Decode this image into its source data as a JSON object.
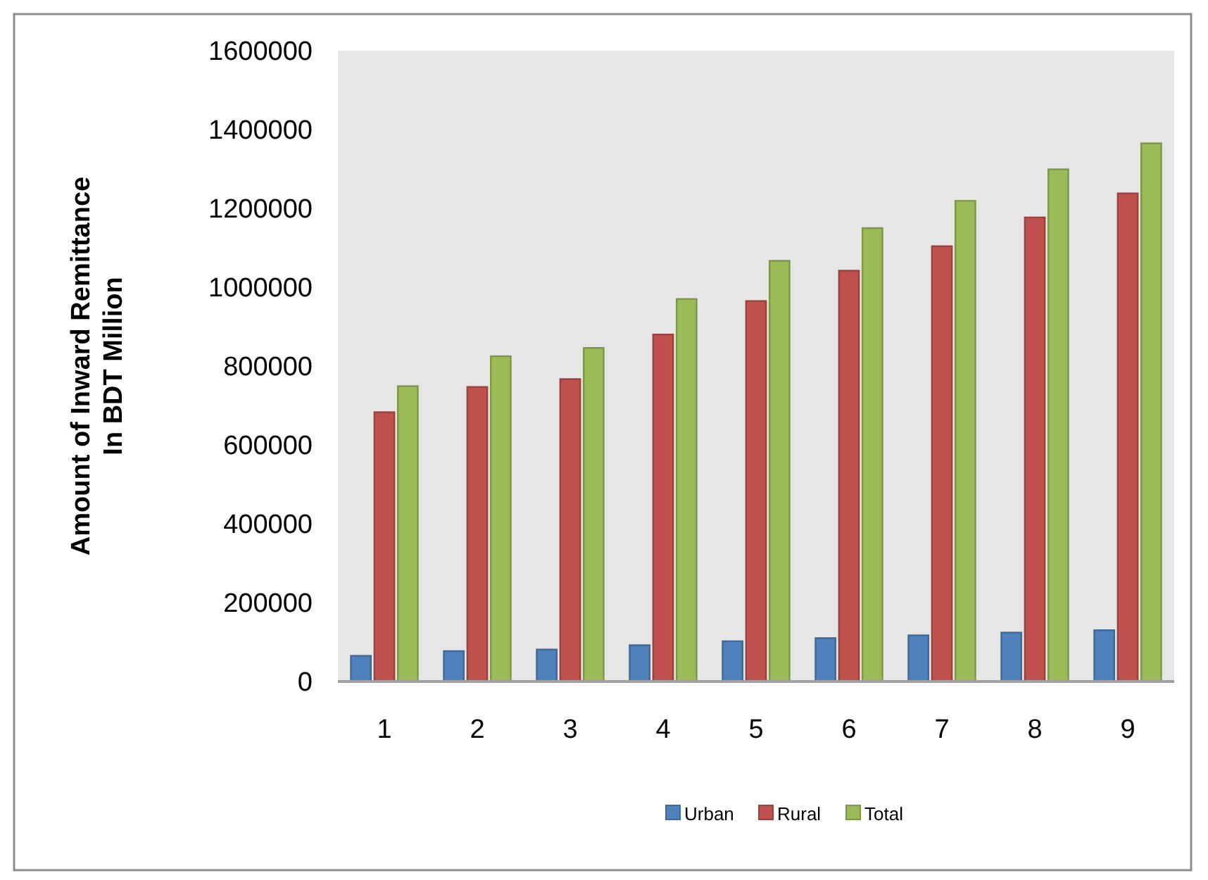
{
  "chart_data": {
    "type": "bar",
    "ylabel": "Amount of Inward Remittance\nIn BDT Million",
    "categories": [
      "1",
      "2",
      "3",
      "4",
      "5",
      "6",
      "7",
      "8",
      "9"
    ],
    "series": [
      {
        "name": "Urban",
        "color": "#4f81bd",
        "values": [
          65000,
          77000,
          81000,
          92000,
          102000,
          110000,
          117000,
          124000,
          130000
        ]
      },
      {
        "name": "Rural",
        "color": "#c0504d",
        "values": [
          683000,
          747000,
          767000,
          880000,
          965000,
          1042000,
          1104000,
          1177000,
          1238000
        ]
      },
      {
        "name": "Total",
        "color": "#9bbb59",
        "values": [
          749000,
          825000,
          846000,
          970000,
          1067000,
          1150000,
          1219000,
          1299000,
          1365000
        ]
      }
    ],
    "ylim": [
      0,
      1600000
    ],
    "yticks": [
      0,
      200000,
      400000,
      600000,
      800000,
      1000000,
      1200000,
      1400000,
      1600000
    ],
    "grid": false,
    "legend": "bottom"
  }
}
